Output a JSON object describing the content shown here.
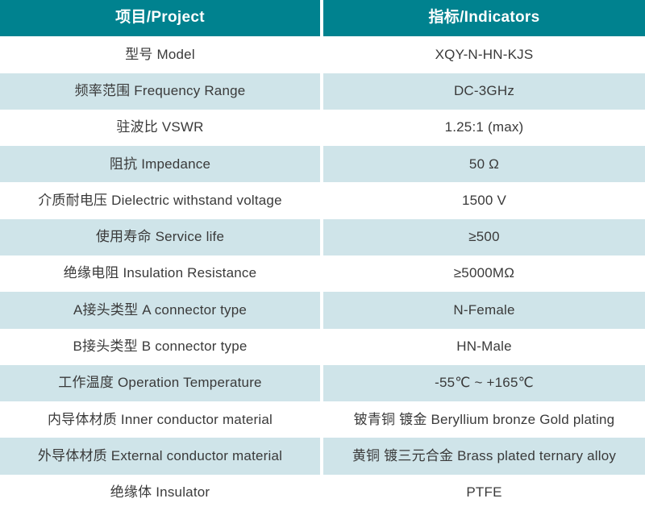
{
  "table": {
    "header": {
      "project": "项目/Project",
      "indicators": "指标/Indicators"
    },
    "rows": [
      {
        "project": "型号 Model",
        "indicator": "XQY-N-HN-KJS"
      },
      {
        "project": "频率范围 Frequency Range",
        "indicator": "DC-3GHz"
      },
      {
        "project": "驻波比 VSWR",
        "indicator": "1.25:1 (max)"
      },
      {
        "project": "阻抗 Impedance",
        "indicator": "50 Ω"
      },
      {
        "project": "介质耐电压 Dielectric withstand voltage",
        "indicator": "1500 V"
      },
      {
        "project": "使用寿命 Service life",
        "indicator": "≥500"
      },
      {
        "project": "绝缘电阻 Insulation Resistance",
        "indicator": "≥5000MΩ"
      },
      {
        "project": "A接头类型 A connector type",
        "indicator": "N-Female"
      },
      {
        "project": "B接头类型 B connector type",
        "indicator": "HN-Male"
      },
      {
        "project": "工作温度 Operation Temperature",
        "indicator": "-55℃ ~ +165℃"
      },
      {
        "project": "内导体材质 Inner conductor material",
        "indicator": "铍青铜 镀金 Beryllium bronze Gold plating"
      },
      {
        "project": "外导体材质 External conductor material",
        "indicator": "黄铜 镀三元合金 Brass plated ternary alloy"
      },
      {
        "project": "绝缘体 Insulator",
        "indicator": "PTFE"
      }
    ],
    "colors": {
      "header_bg": "#00828F",
      "header_text": "#FFFFFF",
      "row_bg": "#FFFFFF",
      "row_alt_bg": "#CFE4E9",
      "body_text": "#3A3A3A",
      "divider": "#FFFFFF"
    }
  }
}
